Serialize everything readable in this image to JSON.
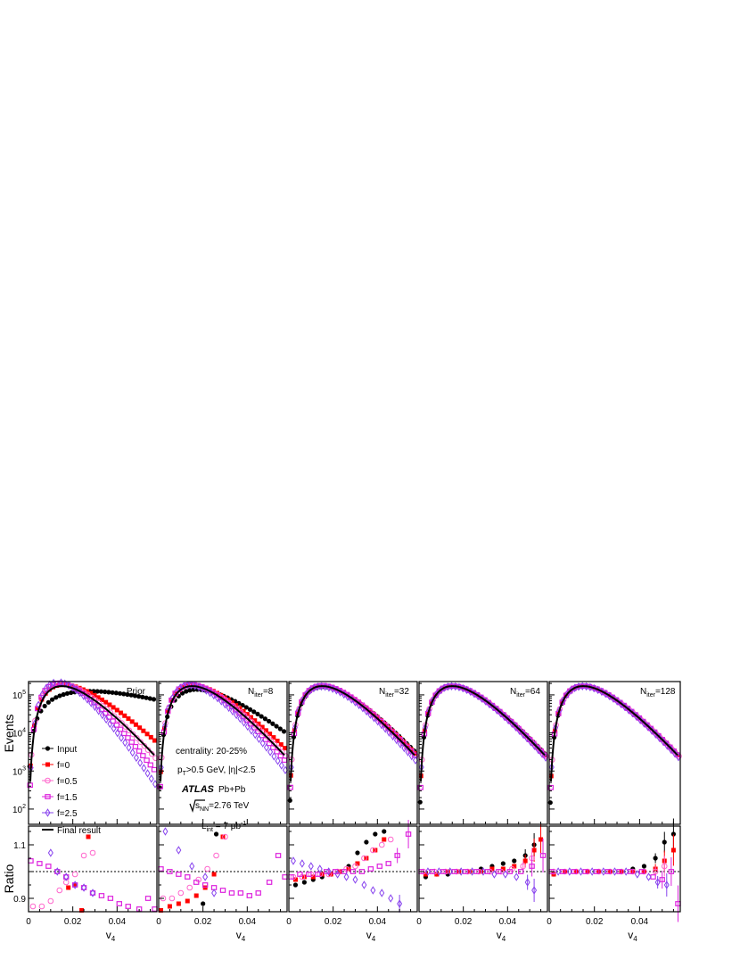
{
  "figure": {
    "ylabel_top": "Events",
    "ylabel_bottom": "Ratio",
    "xlabel": "v",
    "xlabel_sub": "4",
    "x_ticks": [
      "0",
      "0.02",
      "0.04"
    ],
    "ratio_ticks": [
      "0.9",
      "1.1"
    ],
    "events_tick_base": "10",
    "events_tick_exps": [
      "2",
      "3",
      "4",
      "5"
    ]
  },
  "info": {
    "centrality": "centrality: 20-25%",
    "cuts_pt": "p",
    "cuts_pt_sub": "T",
    "cuts_rest": ">0.5 GeV, |η|<2.5",
    "experiment": "ATLAS",
    "system": "Pb+Pb",
    "energy_s": "s",
    "energy_sub": "NN",
    "energy_rest": "=2.76 TeV",
    "lumi_l": "L",
    "lumi_sub": "int",
    "lumi_rest": " = 7 μb",
    "lumi_sup": "-1"
  },
  "legend": {
    "input": "Input",
    "f0": "f=0",
    "f05": "f=0.5",
    "f15": "f=1.5",
    "f25": "f=2.5",
    "final": "Final result"
  },
  "panel_labels": {
    "p1": "Prior",
    "p2": {
      "main": "N",
      "sub": "iter",
      "rest": "=8"
    },
    "p3": {
      "main": "N",
      "sub": "iter",
      "rest": "=32"
    },
    "p4": {
      "main": "N",
      "sub": "iter",
      "rest": "=64"
    },
    "p5": {
      "main": "N",
      "sub": "iter",
      "rest": "=128"
    }
  },
  "colors": {
    "input": "#000000",
    "f0": "#ff0000",
    "f05": "#ff66cc",
    "f15": "#dd22dd",
    "f25": "#8844ee",
    "final": "#000000"
  },
  "chart_data": {
    "type": "scatter",
    "xlim": [
      0,
      0.058
    ],
    "events_ylim_log10": [
      1.6,
      5.35
    ],
    "ratio_ylim": [
      0.85,
      1.17
    ],
    "ratio_reference": 1.0,
    "ratio_points": {
      "p1": {
        "f0": [
          [
            0.024,
            0.838
          ],
          [
            0.018,
            0.94
          ],
          [
            0.021,
            0.95
          ],
          [
            0.027,
            1.13
          ]
        ],
        "f05": [
          [
            0.002,
            0.87
          ],
          [
            0.006,
            0.87
          ],
          [
            0.01,
            0.89
          ],
          [
            0.014,
            0.93
          ],
          [
            0.017,
            0.96
          ],
          [
            0.021,
            0.99
          ],
          [
            0.025,
            1.06
          ],
          [
            0.029,
            1.07
          ]
        ],
        "f15": [
          [
            0.001,
            1.04
          ],
          [
            0.005,
            1.03
          ],
          [
            0.009,
            1.02
          ],
          [
            0.013,
            1.0
          ],
          [
            0.017,
            0.98
          ],
          [
            0.021,
            0.95
          ],
          [
            0.025,
            0.94
          ],
          [
            0.029,
            0.92
          ],
          [
            0.033,
            0.91
          ],
          [
            0.037,
            0.9
          ],
          [
            0.041,
            0.88
          ],
          [
            0.045,
            0.87
          ],
          [
            0.05,
            0.86
          ],
          [
            0.054,
            0.9
          ],
          [
            0.057,
            0.86
          ]
        ],
        "f25": [
          [
            0.01,
            1.07
          ],
          [
            0.017,
            0.98
          ],
          [
            0.013,
            1.0
          ],
          [
            0.021,
            0.95
          ],
          [
            0.025,
            0.94
          ],
          [
            0.029,
            0.92
          ]
        ]
      },
      "p2": {
        "input": [
          [
            0.02,
            0.88
          ],
          [
            0.026,
            1.14
          ]
        ],
        "f0": [
          [
            0.001,
            0.85
          ],
          [
            0.005,
            0.87
          ],
          [
            0.009,
            0.88
          ],
          [
            0.013,
            0.89
          ],
          [
            0.017,
            0.91
          ],
          [
            0.021,
            0.94
          ],
          [
            0.025,
            0.99
          ],
          [
            0.029,
            1.13
          ]
        ],
        "f05": [
          [
            0.002,
            0.9
          ],
          [
            0.006,
            0.9
          ],
          [
            0.01,
            0.92
          ],
          [
            0.014,
            0.94
          ],
          [
            0.018,
            0.97
          ],
          [
            0.022,
            1.01
          ],
          [
            0.026,
            1.06
          ],
          [
            0.03,
            1.13
          ]
        ],
        "f15": [
          [
            0.001,
            1.01
          ],
          [
            0.005,
            1.0
          ],
          [
            0.009,
            0.99
          ],
          [
            0.013,
            0.98
          ],
          [
            0.017,
            0.96
          ],
          [
            0.021,
            0.95
          ],
          [
            0.025,
            0.94
          ],
          [
            0.029,
            0.93
          ],
          [
            0.033,
            0.92
          ],
          [
            0.037,
            0.92
          ],
          [
            0.041,
            0.91
          ],
          [
            0.045,
            0.92
          ],
          [
            0.05,
            0.96
          ],
          [
            0.054,
            1.06
          ],
          [
            0.057,
            0.98
          ]
        ],
        "f25": [
          [
            0.003,
            1.15
          ],
          [
            0.009,
            1.08
          ],
          [
            0.015,
            1.02
          ],
          [
            0.021,
            0.98
          ],
          [
            0.025,
            0.92
          ]
        ]
      },
      "p3": {
        "input": [
          [
            0.003,
            0.95
          ],
          [
            0.007,
            0.96
          ],
          [
            0.011,
            0.97
          ],
          [
            0.015,
            0.98
          ],
          [
            0.019,
            0.99
          ],
          [
            0.023,
            1.0
          ],
          [
            0.027,
            1.02
          ],
          [
            0.031,
            1.07
          ],
          [
            0.035,
            1.11
          ],
          [
            0.039,
            1.14
          ],
          [
            0.043,
            1.15
          ]
        ],
        "f0": [
          [
            0.003,
            0.97
          ],
          [
            0.007,
            0.98
          ],
          [
            0.011,
            0.98
          ],
          [
            0.015,
            0.99
          ],
          [
            0.019,
            0.99
          ],
          [
            0.023,
            1.0
          ],
          [
            0.027,
            1.01
          ],
          [
            0.031,
            1.03
          ],
          [
            0.035,
            1.05
          ],
          [
            0.039,
            1.08
          ],
          [
            0.043,
            1.12
          ]
        ],
        "f05": [
          [
            0.002,
            0.98
          ],
          [
            0.006,
            0.98
          ],
          [
            0.01,
            0.99
          ],
          [
            0.014,
            0.99
          ],
          [
            0.018,
            0.99
          ],
          [
            0.022,
            1.0
          ],
          [
            0.026,
            1.01
          ],
          [
            0.03,
            1.02
          ],
          [
            0.034,
            1.05
          ],
          [
            0.038,
            1.08
          ],
          [
            0.042,
            1.1
          ],
          [
            0.046,
            1.12
          ]
        ],
        "f15": [
          [
            0.001,
            0.98
          ],
          [
            0.005,
            0.99
          ],
          [
            0.009,
            0.99
          ],
          [
            0.013,
            0.99
          ],
          [
            0.017,
            1.0
          ],
          [
            0.021,
            1.0
          ],
          [
            0.025,
            1.0
          ],
          [
            0.029,
            1.0
          ],
          [
            0.033,
            1.0
          ],
          [
            0.037,
            1.01
          ],
          [
            0.041,
            1.02
          ],
          [
            0.045,
            1.03
          ],
          [
            0.049,
            1.06
          ],
          [
            0.054,
            1.14
          ]
        ],
        "f25": [
          [
            0.002,
            1.04
          ],
          [
            0.006,
            1.03
          ],
          [
            0.01,
            1.02
          ],
          [
            0.014,
            1.01
          ],
          [
            0.018,
            1.0
          ],
          [
            0.022,
            0.99
          ],
          [
            0.026,
            0.98
          ],
          [
            0.03,
            0.97
          ],
          [
            0.034,
            0.95
          ],
          [
            0.038,
            0.93
          ],
          [
            0.042,
            0.92
          ],
          [
            0.046,
            0.9
          ],
          [
            0.05,
            0.88
          ]
        ]
      },
      "p4": {
        "input": [
          [
            0.003,
            0.98
          ],
          [
            0.008,
            0.99
          ],
          [
            0.013,
            0.99
          ],
          [
            0.018,
            1.0
          ],
          [
            0.023,
            1.0
          ],
          [
            0.028,
            1.01
          ],
          [
            0.033,
            1.02
          ],
          [
            0.038,
            1.03
          ],
          [
            0.043,
            1.04
          ],
          [
            0.048,
            1.06
          ],
          [
            0.052,
            1.1
          ]
        ],
        "f0": [
          [
            0.003,
            0.99
          ],
          [
            0.008,
            0.99
          ],
          [
            0.013,
            1.0
          ],
          [
            0.018,
            1.0
          ],
          [
            0.023,
            1.0
          ],
          [
            0.028,
            1.0
          ],
          [
            0.033,
            1.01
          ],
          [
            0.038,
            1.01
          ],
          [
            0.043,
            1.02
          ],
          [
            0.048,
            1.04
          ],
          [
            0.052,
            1.08
          ],
          [
            0.055,
            1.12
          ]
        ],
        "f05": [
          [
            0.002,
            1.0
          ],
          [
            0.007,
            1.0
          ],
          [
            0.012,
            1.0
          ],
          [
            0.017,
            1.0
          ],
          [
            0.022,
            1.0
          ],
          [
            0.027,
            1.0
          ],
          [
            0.032,
            1.0
          ],
          [
            0.037,
            1.0
          ],
          [
            0.042,
            1.01
          ],
          [
            0.047,
            1.02
          ],
          [
            0.051,
            1.05
          ]
        ],
        "f15": [
          [
            0.001,
            1.0
          ],
          [
            0.006,
            1.0
          ],
          [
            0.011,
            1.0
          ],
          [
            0.016,
            1.0
          ],
          [
            0.021,
            1.0
          ],
          [
            0.026,
            1.0
          ],
          [
            0.031,
            1.0
          ],
          [
            0.036,
            1.0
          ],
          [
            0.041,
            1.0
          ],
          [
            0.046,
            1.0
          ],
          [
            0.051,
            1.02
          ],
          [
            0.056,
            1.06
          ]
        ],
        "f25": [
          [
            0.004,
            1.0
          ],
          [
            0.009,
            1.0
          ],
          [
            0.014,
            1.0
          ],
          [
            0.019,
            1.0
          ],
          [
            0.024,
            1.0
          ],
          [
            0.029,
            1.0
          ],
          [
            0.034,
            0.99
          ],
          [
            0.039,
            0.99
          ],
          [
            0.044,
            0.98
          ],
          [
            0.049,
            0.96
          ],
          [
            0.052,
            0.93
          ]
        ]
      },
      "p5": {
        "input": [
          [
            0.002,
            0.99
          ],
          [
            0.007,
            1.0
          ],
          [
            0.012,
            1.0
          ],
          [
            0.017,
            1.0
          ],
          [
            0.022,
            1.0
          ],
          [
            0.027,
            1.0
          ],
          [
            0.032,
            1.0
          ],
          [
            0.037,
            1.01
          ],
          [
            0.042,
            1.02
          ],
          [
            0.047,
            1.05
          ],
          [
            0.051,
            1.11
          ],
          [
            0.055,
            1.14
          ]
        ],
        "f0": [
          [
            0.002,
            0.99
          ],
          [
            0.007,
            1.0
          ],
          [
            0.012,
            1.0
          ],
          [
            0.017,
            1.0
          ],
          [
            0.022,
            1.0
          ],
          [
            0.027,
            1.0
          ],
          [
            0.032,
            1.0
          ],
          [
            0.037,
            1.0
          ],
          [
            0.042,
            1.0
          ],
          [
            0.047,
            1.01
          ],
          [
            0.051,
            1.04
          ],
          [
            0.055,
            1.08
          ]
        ],
        "f05": [
          [
            0.002,
            1.0
          ],
          [
            0.007,
            1.0
          ],
          [
            0.012,
            1.0
          ],
          [
            0.017,
            1.0
          ],
          [
            0.022,
            1.0
          ],
          [
            0.027,
            1.0
          ],
          [
            0.032,
            1.0
          ],
          [
            0.037,
            1.0
          ],
          [
            0.042,
            1.0
          ],
          [
            0.047,
            1.0
          ],
          [
            0.051,
            1.02
          ]
        ],
        "f15": [
          [
            0.001,
            1.0
          ],
          [
            0.006,
            1.0
          ],
          [
            0.011,
            1.0
          ],
          [
            0.016,
            1.0
          ],
          [
            0.021,
            1.0
          ],
          [
            0.026,
            1.0
          ],
          [
            0.031,
            1.0
          ],
          [
            0.036,
            1.0
          ],
          [
            0.041,
            1.0
          ],
          [
            0.046,
            0.98
          ],
          [
            0.05,
            0.97
          ],
          [
            0.054,
            1.0
          ],
          [
            0.057,
            0.88
          ]
        ],
        "f25": [
          [
            0.004,
            1.0
          ],
          [
            0.009,
            1.0
          ],
          [
            0.014,
            1.0
          ],
          [
            0.019,
            1.0
          ],
          [
            0.024,
            1.0
          ],
          [
            0.029,
            1.0
          ],
          [
            0.034,
            1.0
          ],
          [
            0.039,
            0.99
          ],
          [
            0.044,
            0.98
          ],
          [
            0.048,
            0.96
          ],
          [
            0.052,
            0.95
          ]
        ]
      }
    }
  }
}
